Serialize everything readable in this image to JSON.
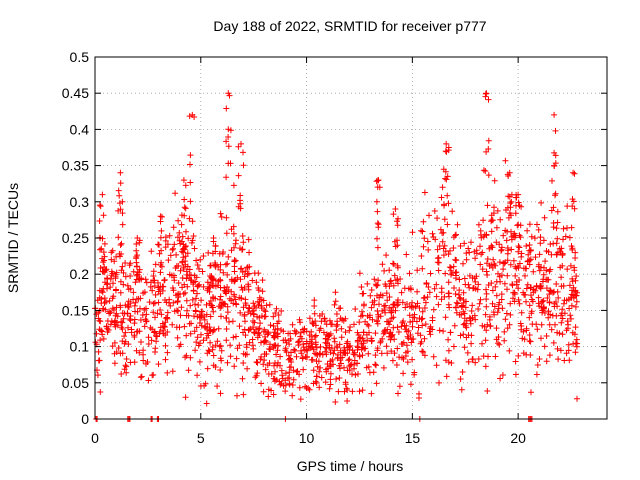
{
  "chart_data": {
    "type": "scatter",
    "title": "Day 188 of 2022, SRMTID for receiver p777",
    "xlabel": "GPS time / hours",
    "ylabel": "SRMTID / TECUs",
    "xlim": [
      0,
      24.2
    ],
    "ylim": [
      0,
      0.5
    ],
    "xticks": [
      0,
      5,
      10,
      15,
      20
    ],
    "xtick_labels": [
      "0",
      "5",
      "10",
      "15",
      "20"
    ],
    "yticks": [
      0,
      0.05,
      0.1,
      0.15,
      0.2,
      0.25,
      0.3,
      0.35,
      0.4,
      0.45,
      0.5
    ],
    "ytick_labels": [
      "0",
      "0.05",
      "0.1",
      "0.15",
      "0.2",
      "0.25",
      "0.3",
      "0.35",
      "0.4",
      "0.45",
      "0.5"
    ],
    "grid": true,
    "marker": "+",
    "color": "#ff0000",
    "point_count": 1800,
    "envelope": [
      [
        0.0,
        0.16
      ],
      [
        1.0,
        0.15
      ],
      [
        2.0,
        0.15
      ],
      [
        2.6,
        0.14
      ],
      [
        3.3,
        0.15
      ],
      [
        4.2,
        0.19
      ],
      [
        5.0,
        0.13
      ],
      [
        6.2,
        0.17
      ],
      [
        7.2,
        0.16
      ],
      [
        8.2,
        0.11
      ],
      [
        9.0,
        0.09
      ],
      [
        10.0,
        0.095
      ],
      [
        11.0,
        0.09
      ],
      [
        12.0,
        0.095
      ],
      [
        12.8,
        0.12
      ],
      [
        13.6,
        0.14
      ],
      [
        14.5,
        0.13
      ],
      [
        15.5,
        0.16
      ],
      [
        16.5,
        0.2
      ],
      [
        17.5,
        0.16
      ],
      [
        18.5,
        0.19
      ],
      [
        19.5,
        0.2
      ],
      [
        20.2,
        0.19
      ],
      [
        21.0,
        0.17
      ],
      [
        21.8,
        0.19
      ],
      [
        22.8,
        0.15
      ]
    ],
    "spikes": [
      [
        0.35,
        0.31
      ],
      [
        1.2,
        0.34
      ],
      [
        2.0,
        0.25
      ],
      [
        3.1,
        0.28
      ],
      [
        4.2,
        0.33
      ],
      [
        4.6,
        0.42
      ],
      [
        5.6,
        0.25
      ],
      [
        6.3,
        0.45
      ],
      [
        6.9,
        0.38
      ],
      [
        13.4,
        0.33
      ],
      [
        14.2,
        0.29
      ],
      [
        16.6,
        0.38
      ],
      [
        18.5,
        0.45
      ],
      [
        19.6,
        0.34
      ],
      [
        20.0,
        0.31
      ],
      [
        21.7,
        0.42
      ],
      [
        22.6,
        0.34
      ]
    ],
    "zero_points": [
      0.05,
      0.1,
      1.55,
      1.6,
      1.65,
      2.65,
      2.7,
      2.95,
      3.0,
      9.0,
      15.35,
      20.5,
      20.55,
      20.6,
      20.65
    ]
  }
}
